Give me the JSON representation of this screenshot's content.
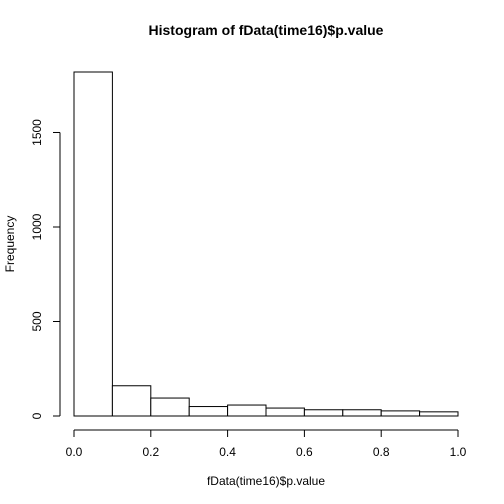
{
  "chart_data": {
    "type": "bar",
    "title": "Histogram of fData(time16)$p.value",
    "xlabel": "fData(time16)$p.value",
    "ylabel": "Frequency",
    "bins": [
      {
        "from": 0.0,
        "to": 0.1,
        "count": 1820
      },
      {
        "from": 0.1,
        "to": 0.2,
        "count": 160
      },
      {
        "from": 0.2,
        "to": 0.3,
        "count": 95
      },
      {
        "from": 0.3,
        "to": 0.4,
        "count": 50
      },
      {
        "from": 0.4,
        "to": 0.5,
        "count": 58
      },
      {
        "from": 0.5,
        "to": 0.6,
        "count": 42
      },
      {
        "from": 0.6,
        "to": 0.7,
        "count": 33
      },
      {
        "from": 0.7,
        "to": 0.8,
        "count": 33
      },
      {
        "from": 0.8,
        "to": 0.9,
        "count": 27
      },
      {
        "from": 0.9,
        "to": 1.0,
        "count": 22
      }
    ],
    "xlim": [
      0.0,
      1.0
    ],
    "ylim": [
      0,
      1820
    ],
    "x_ticks": [
      0.0,
      0.2,
      0.4,
      0.6,
      0.8,
      1.0
    ],
    "x_tick_labels": [
      "0.0",
      "0.2",
      "0.4",
      "0.6",
      "0.8",
      "1.0"
    ],
    "y_ticks": [
      0,
      500,
      1000,
      1500
    ],
    "y_tick_labels": [
      "0",
      "500",
      "1000",
      "1500"
    ],
    "grid": false,
    "bar_fill": "#ffffff",
    "bar_stroke": "#000000"
  }
}
